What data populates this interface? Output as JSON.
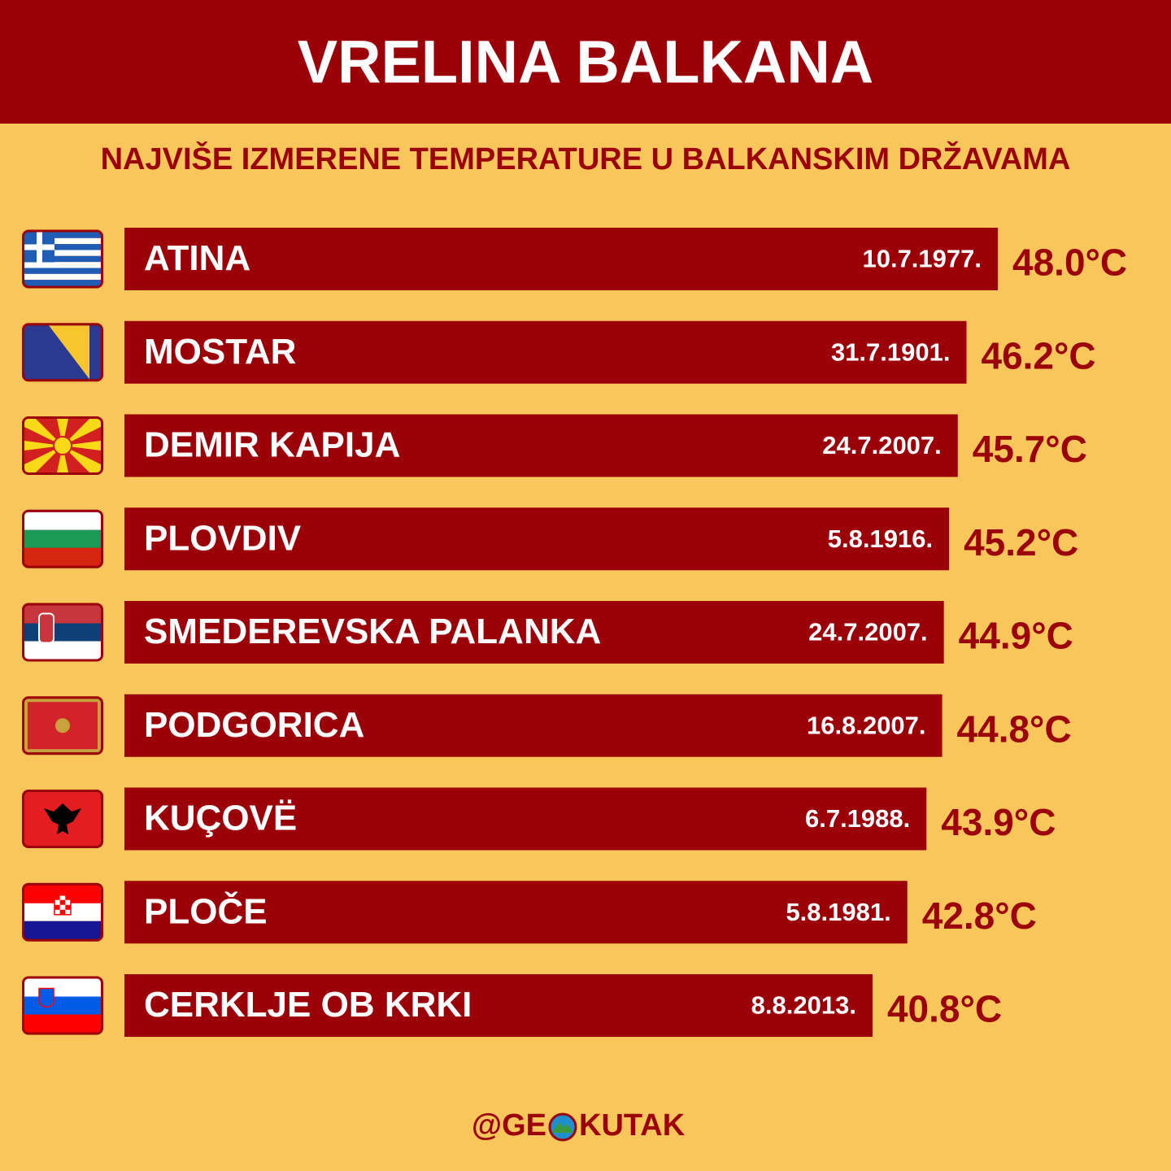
{
  "chart_data": {
    "type": "hbar",
    "title": "VRELINA BALKANA",
    "subtitle": "NAJVIŠE IZMERENE TEMPERATURE U BALKANSKIM DRŽAVAMA",
    "categories": [
      "ATINA",
      "MOSTAR",
      "DEMIR KAPIJA",
      "PLOVDIV",
      "SMEDEREVSKA PALANKA",
      "PODGORICA",
      "KUÇOVË",
      "PLOČE",
      "CERKLJE OB KRKI"
    ],
    "dates": [
      "10.7.1977.",
      "31.7.1901.",
      "24.7.2007.",
      "5.8.1916.",
      "24.7.2007.",
      "16.8.2007.",
      "6.7.1988.",
      "5.8.1981.",
      "8.8.2013."
    ],
    "values": [
      48.0,
      46.2,
      45.7,
      45.2,
      44.9,
      44.8,
      43.9,
      42.8,
      40.8
    ],
    "value_labels": [
      "48.0°C",
      "46.2°C",
      "45.7°C",
      "45.2°C",
      "44.9°C",
      "44.8°C",
      "43.9°C",
      "42.8°C",
      "40.8°C"
    ],
    "color": "#9b0009",
    "xlim": [
      -2.2,
      48
    ],
    "credit": [
      "@GE",
      "KUTAK"
    ]
  }
}
